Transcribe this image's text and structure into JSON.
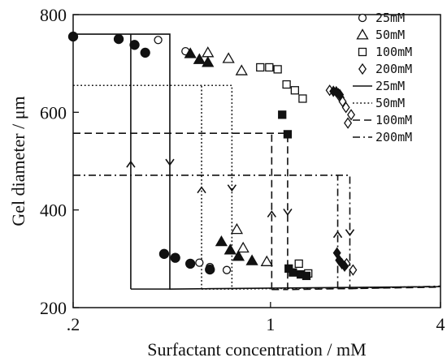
{
  "chart_data": {
    "type": "scatter",
    "xlabel": "Surfactant concentration / mM",
    "ylabel": "Gel diameter / μm",
    "xscale": "log",
    "xlim": [
      0.2,
      4
    ],
    "ylim": [
      200,
      800
    ],
    "xticks": [
      {
        "value": 0.2,
        "label": ".2"
      },
      {
        "value": 1,
        "label": "1"
      },
      {
        "value": 4,
        "label": "4"
      }
    ],
    "yticks": [
      {
        "value": 200,
        "label": "200"
      },
      {
        "value": 400,
        "label": "400"
      },
      {
        "value": 600,
        "label": "600"
      },
      {
        "value": 800,
        "label": "800"
      }
    ],
    "legend_position": "top-right",
    "series": [
      {
        "name": "25mM",
        "marker": "circle",
        "open": [
          [
            0.4,
            748
          ],
          [
            0.5,
            725
          ],
          [
            0.56,
            292
          ],
          [
            0.61,
            283
          ],
          [
            0.7,
            277
          ]
        ],
        "filled": [
          [
            0.2,
            755
          ],
          [
            0.29,
            750
          ],
          [
            0.33,
            738
          ],
          [
            0.36,
            722
          ],
          [
            0.42,
            310
          ],
          [
            0.46,
            302
          ],
          [
            0.52,
            290
          ],
          [
            0.61,
            278
          ]
        ]
      },
      {
        "name": "50mM",
        "marker": "triangle",
        "open": [
          [
            0.6,
            722
          ],
          [
            0.71,
            710
          ],
          [
            0.79,
            685
          ],
          [
            0.76,
            360
          ],
          [
            0.8,
            322
          ],
          [
            0.97,
            294
          ]
        ],
        "filled": [
          [
            0.52,
            720
          ],
          [
            0.56,
            708
          ],
          [
            0.6,
            702
          ],
          [
            0.67,
            335
          ],
          [
            0.72,
            318
          ],
          [
            0.77,
            305
          ],
          [
            0.86,
            296
          ]
        ]
      },
      {
        "name": "100mM",
        "marker": "square",
        "open": [
          [
            0.92,
            692
          ],
          [
            0.99,
            692
          ],
          [
            1.06,
            688
          ],
          [
            1.14,
            657
          ],
          [
            1.22,
            645
          ],
          [
            1.3,
            628
          ],
          [
            1.26,
            290
          ],
          [
            1.36,
            270
          ]
        ],
        "filled": [
          [
            1.1,
            595
          ],
          [
            1.15,
            555
          ],
          [
            1.16,
            280
          ],
          [
            1.2,
            272
          ],
          [
            1.28,
            268
          ],
          [
            1.34,
            265
          ]
        ]
      },
      {
        "name": "200mM",
        "marker": "diamond",
        "open": [
          [
            1.62,
            645
          ],
          [
            1.74,
            638
          ],
          [
            1.77,
            630
          ],
          [
            1.8,
            622
          ],
          [
            1.85,
            610
          ],
          [
            1.88,
            578
          ],
          [
            1.93,
            595
          ],
          [
            1.86,
            290
          ],
          [
            1.96,
            277
          ]
        ],
        "filled": [
          [
            1.67,
            643
          ],
          [
            1.71,
            642
          ],
          [
            1.76,
            636
          ],
          [
            1.72,
            312
          ],
          [
            1.75,
            297
          ],
          [
            1.79,
            290
          ],
          [
            1.83,
            285
          ]
        ]
      }
    ],
    "hysteresis": [
      {
        "name": "25mM",
        "dash": "solid",
        "x_low": 0.32,
        "x_high": 0.44,
        "y_swollen": 760,
        "y_collapsed": 238
      },
      {
        "name": "50mM",
        "dash": "dotted",
        "x_low": 0.57,
        "x_high": 0.73,
        "y_swollen": 655,
        "y_collapsed": 238
      },
      {
        "name": "100mM",
        "dash": "dashed",
        "x_low": 1.01,
        "x_high": 1.15,
        "y_swollen": 557,
        "y_collapsed": 237
      },
      {
        "name": "200mM",
        "dash": "dash-dot",
        "x_low": 1.73,
        "x_high": 1.91,
        "y_swollen": 471,
        "y_collapsed": 239
      }
    ]
  }
}
